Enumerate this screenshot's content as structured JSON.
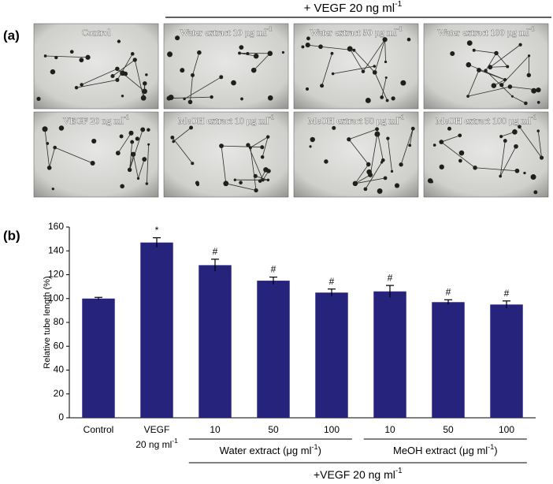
{
  "panel_a": {
    "label": "(a)",
    "header": {
      "text": "+ VEGF 20 ng ml",
      "sup": "-1"
    },
    "images": [
      {
        "text": "Control"
      },
      {
        "text": "Water extract 10 μg ml",
        "sup": "-1"
      },
      {
        "text": "Water extract 50 μg ml",
        "sup": "-1"
      },
      {
        "text": "Water extract 100 μg ml",
        "sup": "-1"
      },
      {
        "text": "VEGF 20 ng ml",
        "sup": "-1"
      },
      {
        "text": "MeOH extract 10 μg ml",
        "sup": "-1"
      },
      {
        "text": "MeOH extract 50 μg ml",
        "sup": "-1"
      },
      {
        "text": "MeOH extract 100 μg ml",
        "sup": "-1"
      }
    ]
  },
  "chart_data": {
    "type": "bar",
    "panel_label": "(b)",
    "y_label": "Relative tube length (%)",
    "categories": [
      "Control",
      "VEGF",
      "10",
      "50",
      "100",
      "10",
      "50",
      "100"
    ],
    "vegf_dose": {
      "text": "20 ng ml",
      "sup": "-1"
    },
    "groups": [
      {
        "text": "Water extract (μg ml",
        "sup": "-1",
        "tail": ")",
        "from": 2,
        "to": 4
      },
      {
        "text": "MeOH  extract (μg ml",
        "sup": "-1",
        "tail": ")",
        "from": 5,
        "to": 7
      }
    ],
    "treatment": {
      "text": "+VEGF 20 ng ml",
      "sup": "-1",
      "from": 2,
      "to": 7
    },
    "series": [
      {
        "color": "#25237c",
        "values": [
          100,
          147,
          128,
          115,
          105,
          106,
          97,
          95
        ],
        "errors": [
          1,
          4,
          5,
          3,
          3,
          5,
          2,
          3
        ]
      }
    ],
    "annotations": [
      null,
      "*",
      "#",
      "#",
      "#",
      "#",
      "#",
      "#"
    ],
    "ylim": [
      0,
      160
    ],
    "yticks": [
      0,
      20,
      40,
      60,
      80,
      100,
      120,
      140,
      160
    ]
  }
}
